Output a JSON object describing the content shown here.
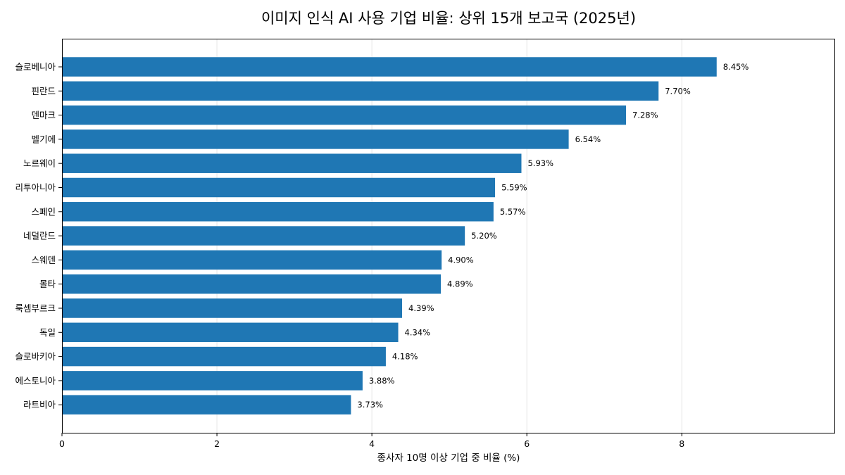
{
  "chart_data": {
    "type": "bar",
    "orientation": "horizontal",
    "title": "이미지 인식 AI 사용 기업 비율: 상위 15개 보고국 (2025년)",
    "xlabel": "종사자 10명 이상 기업 중 비율 (%)",
    "ylabel": "",
    "xlim": [
      0,
      9.97
    ],
    "xticks": [
      0,
      2,
      4,
      6,
      8
    ],
    "grid": "vertical",
    "bar_color": "#1f77b4",
    "categories": [
      "슬로베니아",
      "핀란드",
      "덴마크",
      "벨기에",
      "노르웨이",
      "리투아니아",
      "스페인",
      "네덜란드",
      "스웨덴",
      "몰타",
      "룩셈부르크",
      "독일",
      "슬로바키아",
      "에스토니아",
      "라트비아"
    ],
    "values": [
      8.45,
      7.7,
      7.28,
      6.54,
      5.93,
      5.59,
      5.57,
      5.2,
      4.9,
      4.89,
      4.39,
      4.34,
      4.18,
      3.88,
      3.73
    ],
    "data_labels": [
      "8.45%",
      "7.70%",
      "7.28%",
      "6.54%",
      "5.93%",
      "5.59%",
      "5.57%",
      "5.20%",
      "4.90%",
      "4.89%",
      "4.39%",
      "4.34%",
      "4.18%",
      "3.88%",
      "3.73%"
    ]
  }
}
